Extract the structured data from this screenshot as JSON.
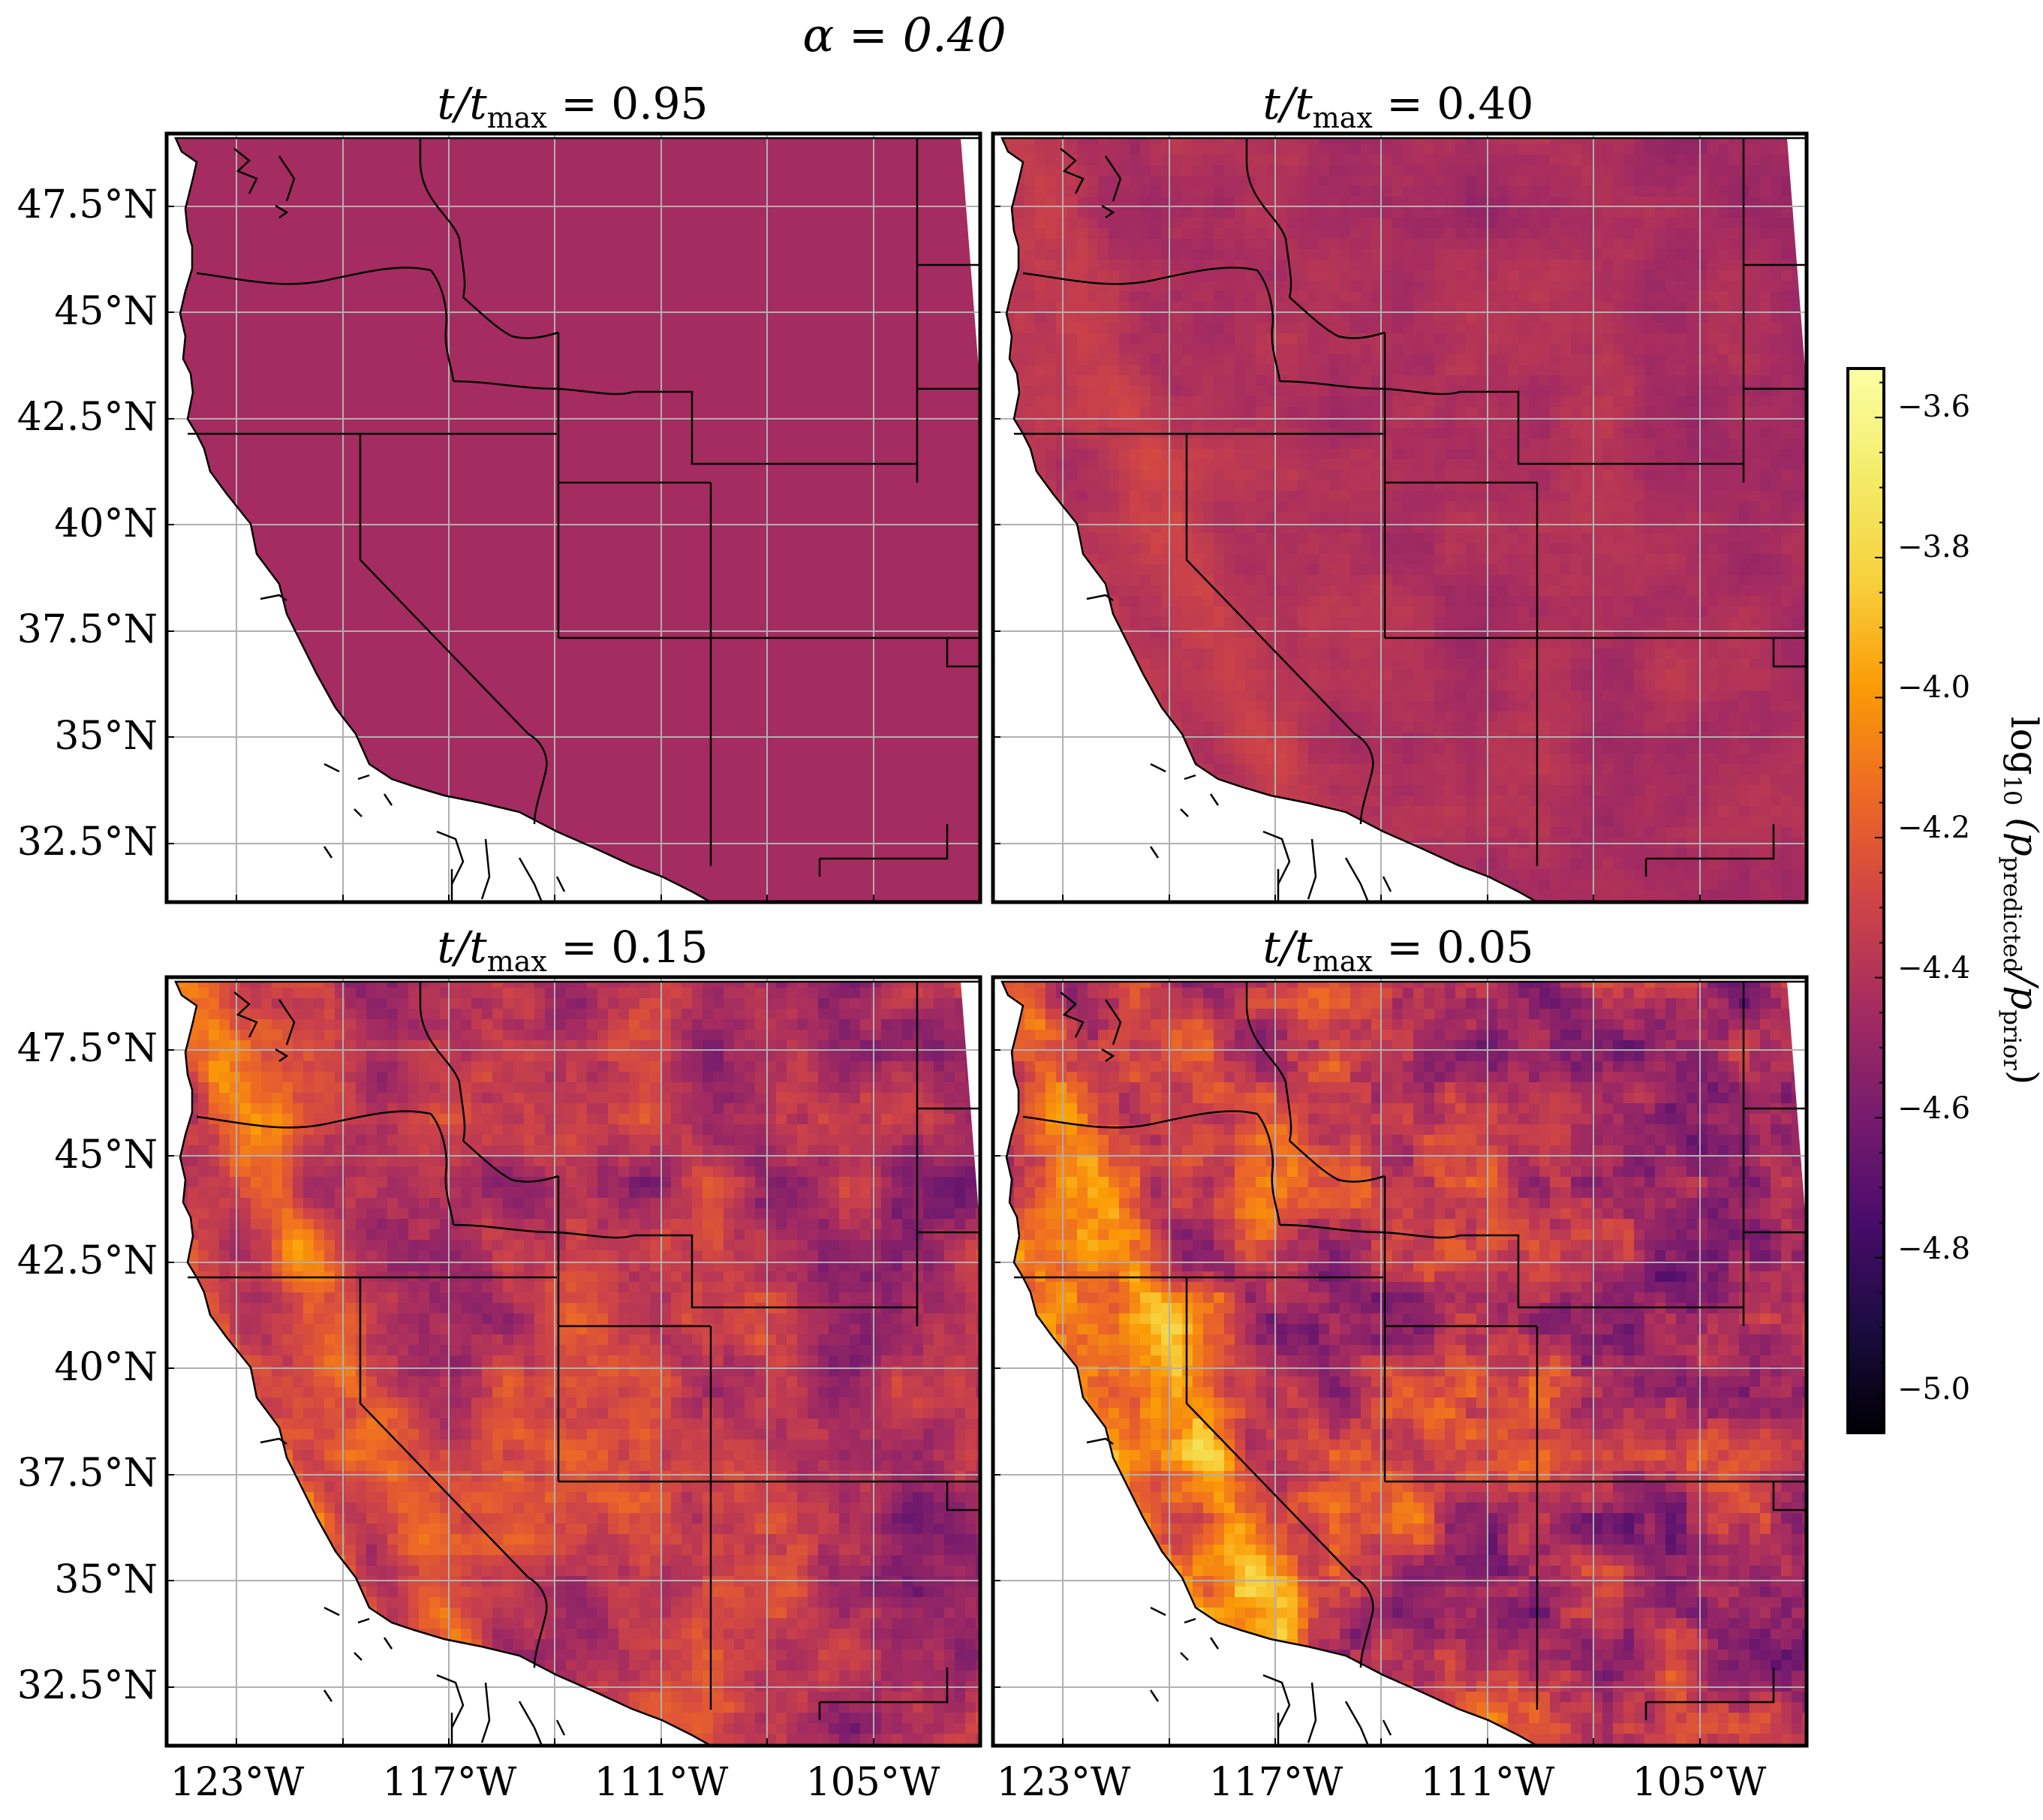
{
  "figure": {
    "suptitle": "α = 0.40"
  },
  "panels": [
    {
      "id": "p095",
      "title_t": "t",
      "title_rest": "/t",
      "title_sub": "max",
      "title_val": " = 0.95",
      "level": 0.4,
      "noise": 0.0
    },
    {
      "id": "p040",
      "title_t": "t",
      "title_rest": "/t",
      "title_sub": "max",
      "title_val": " = 0.40",
      "level": 0.42,
      "noise": 0.08
    },
    {
      "id": "p015",
      "title_t": "t",
      "title_rest": "/t",
      "title_sub": "max",
      "title_val": " = 0.15",
      "level": 0.45,
      "noise": 0.22
    },
    {
      "id": "p005",
      "title_t": "t",
      "title_rest": "/t",
      "title_sub": "max",
      "title_val": " = 0.05",
      "level": 0.45,
      "noise": 0.32
    }
  ],
  "axes": {
    "lat_ticks": [
      "47.5°N",
      "45°N",
      "42.5°N",
      "40°N",
      "37.5°N",
      "35°N",
      "32.5°N"
    ],
    "lon_ticks": [
      "123°W",
      "117°W",
      "111°W",
      "105°W"
    ]
  },
  "colorbar": {
    "ticks": [
      "−3.6",
      "−3.8",
      "−4.0",
      "−4.2",
      "−4.4",
      "−4.6",
      "−4.8",
      "−5.0"
    ],
    "label": "log₁₀ (p_predicted/p_prior)",
    "label_main": "log",
    "label_sub10": "10",
    "label_open": " (p",
    "label_sub_pred": "predicted",
    "label_mid": "/p",
    "label_sub_prior": "prior",
    "label_close": ")",
    "cmap": "inferno",
    "vmin": -5.05,
    "vmax": -3.53
  },
  "colors": {
    "uniform_fill": "#a52c60",
    "frame": "#000000",
    "grid": "#b0b0b0"
  }
}
